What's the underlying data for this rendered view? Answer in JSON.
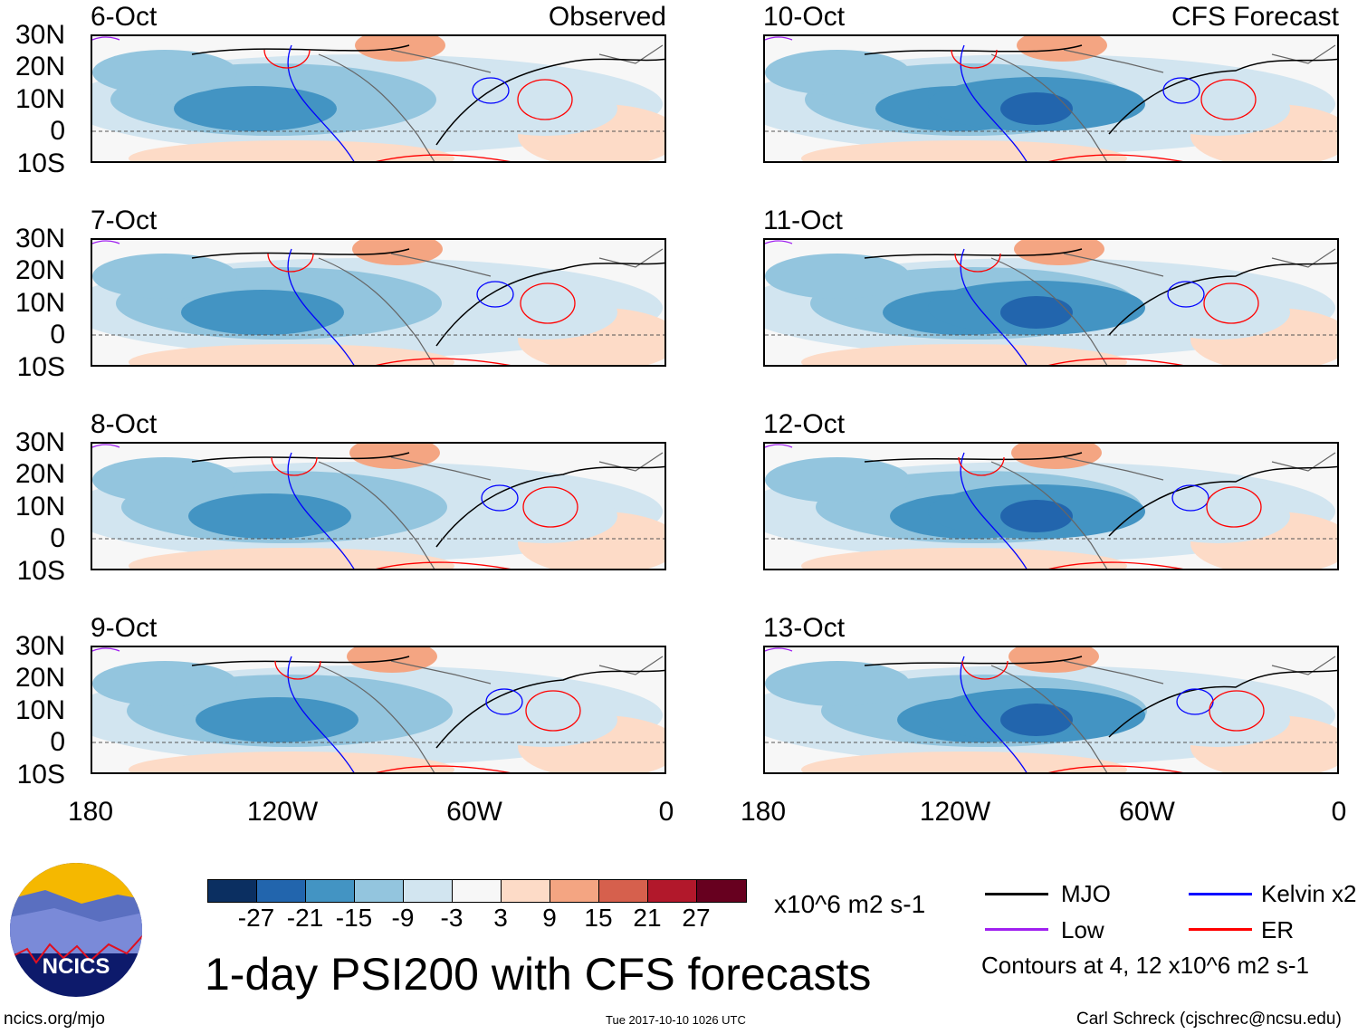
{
  "panels_left": [
    {
      "date": "6-Oct",
      "header": "Observed"
    },
    {
      "date": "7-Oct",
      "header": ""
    },
    {
      "date": "8-Oct",
      "header": ""
    },
    {
      "date": "9-Oct",
      "header": ""
    }
  ],
  "panels_right": [
    {
      "date": "10-Oct",
      "header": "CFS Forecast"
    },
    {
      "date": "11-Oct",
      "header": ""
    },
    {
      "date": "12-Oct",
      "header": ""
    },
    {
      "date": "13-Oct",
      "header": ""
    }
  ],
  "lat_labels": [
    "30N",
    "20N",
    "10N",
    "0",
    "10S"
  ],
  "lon_labels": [
    "180",
    "120W",
    "60W",
    "0"
  ],
  "colorbar": {
    "colors": [
      "#0b2f61",
      "#2265ad",
      "#4394c3",
      "#93c5de",
      "#d2e5f0",
      "#f7f7f7",
      "#fddbc7",
      "#f4a582",
      "#d6604d",
      "#b2182b",
      "#67001f"
    ],
    "levels": [
      "-27",
      "-21",
      "-15",
      "-9",
      "-3",
      "3",
      "9",
      "15",
      "21",
      "27"
    ],
    "units": "x10^6 m2 s-1"
  },
  "legend": {
    "items": [
      {
        "label": "MJO",
        "color": "#000000"
      },
      {
        "label": "Kelvin x2",
        "color": "#0000ff"
      },
      {
        "label": "Low",
        "color": "#a020f0"
      },
      {
        "label": "ER",
        "color": "#ff0000"
      }
    ],
    "contours": "Contours at 4, 12 x10^6 m2 s-1"
  },
  "title": "1-day PSI200 with CFS forecasts",
  "logo_text": "NCICS",
  "footer": {
    "left": "ncics.org/mjo",
    "center": "Tue 2017-10-10 1026 UTC",
    "right": "Carl Schreck (cjschrec@ncsu.edu)"
  }
}
